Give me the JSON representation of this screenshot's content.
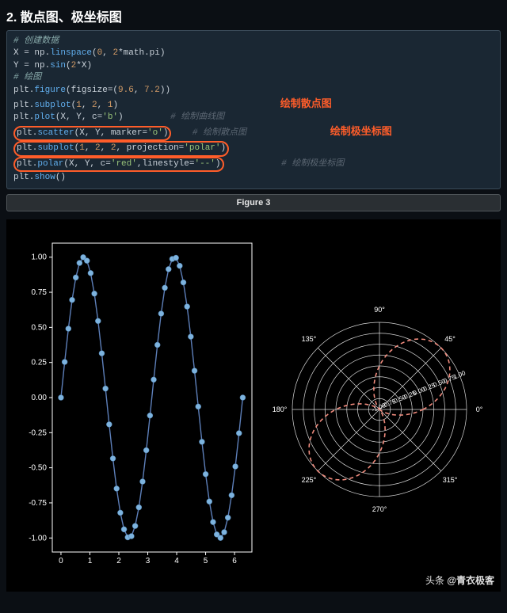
{
  "title": "2. 散点图、极坐标图",
  "annotations": {
    "scatter": "绘制散点图",
    "polar": "绘制极坐标图"
  },
  "code": {
    "c1": "# 创建数据",
    "l1": "X = np.linspace(0, 2*math.pi)",
    "l2": "Y = np.sin(2*X)",
    "c2": "# 绘图",
    "l3": "plt.figure(figsize=(9.6, 7.2))",
    "l4": "plt.subplot(1, 2, 1)",
    "l5": "plt.plot(X, Y, c='b')",
    "l5c": "# 绘制曲线图",
    "l6": "plt.scatter(X, Y, marker='o')",
    "l6c": "# 绘制散点图",
    "l7": "plt.subplot(1, 2, 2, projection='polar')",
    "l8": "plt.polar(X, Y, c='red',linestyle='--')",
    "l8c": "# 绘制极坐标图",
    "l9": "plt.show()"
  },
  "figure_label": "Figure 3",
  "credit_prefix": "头条 ",
  "credit_name": "@青衣极客",
  "line_chart": {
    "type": "line+scatter",
    "n_points": 50,
    "x_start": 0,
    "x_end": 6.2832,
    "y_func": "sin(2x)",
    "line_color": "#5d7fb9",
    "marker_color": "#7db3de",
    "marker_size": 3.5,
    "xlim": [
      -0.3,
      6.6
    ],
    "ylim": [
      -1.1,
      1.1
    ],
    "xticks": [
      0,
      1,
      2,
      3,
      4,
      5,
      6
    ],
    "xtick_labels": [
      "0",
      "1",
      "2",
      "3",
      "4",
      "5",
      "6"
    ],
    "yticks": [
      -1.0,
      -0.75,
      -0.5,
      -0.25,
      0.0,
      0.25,
      0.5,
      0.75,
      1.0
    ],
    "ytick_labels": [
      "-1.00",
      "-0.75",
      "-0.50",
      "-0.25",
      "0.00",
      "0.25",
      "0.50",
      "0.75",
      "1.00"
    ],
    "background": "#000000",
    "axis_color": "#ffffff",
    "label_fontsize": 10
  },
  "polar_chart": {
    "type": "polar",
    "n_points": 50,
    "r_func": "sin(2theta)",
    "line_color": "#f08b7d",
    "linestyle": "5,4",
    "line_width": 1.6,
    "grid_color": "#ffffff",
    "background": "#000000",
    "angle_ticks": [
      0,
      45,
      90,
      135,
      180,
      225,
      270,
      315
    ],
    "angle_labels": [
      "0°",
      "45°",
      "90°",
      "135°",
      "180°",
      "225°",
      "270°",
      "315°"
    ],
    "radial_ticks": [
      -1.0,
      -0.75,
      -0.5,
      -0.25,
      0.0,
      0.25,
      0.5,
      0.75,
      1.0
    ],
    "radial_labels": [
      "-1.00",
      "-0.75",
      "-0.50",
      "-0.25",
      "0.00",
      "0.25",
      "0.50",
      "0.75",
      "1.00"
    ],
    "ring_outer": 1.0,
    "label_fontsize": 9
  }
}
